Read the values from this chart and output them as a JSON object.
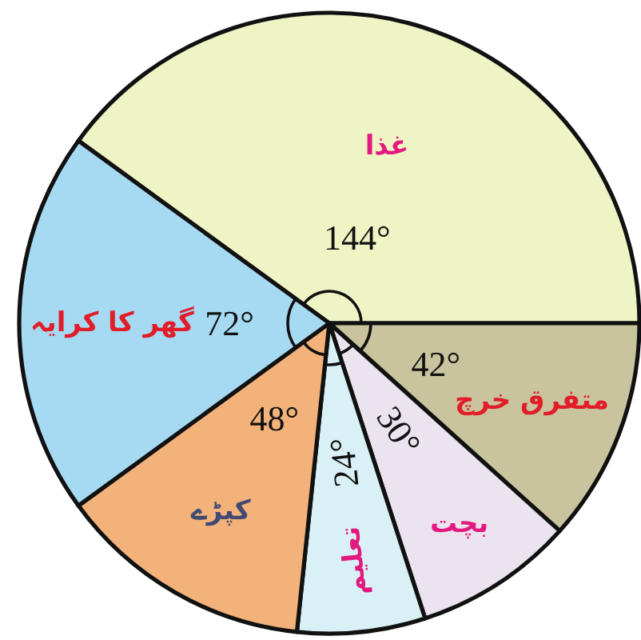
{
  "chart_data": {
    "type": "pie",
    "categories": [
      "غذا",
      "متفرق خرچ",
      "بچت",
      "تعلیم",
      "کپڑے",
      "گھر کا کرایہ"
    ],
    "values": [
      144,
      42,
      30,
      24,
      48,
      72
    ],
    "value_labels": [
      "144°",
      "42°",
      "30°",
      "24°",
      "48°",
      "72°"
    ],
    "colors": [
      "#eef4c4",
      "#c9c39e",
      "#ebe3ee",
      "#d9f1f6",
      "#f3b27a",
      "#a6d9f2"
    ]
  }
}
